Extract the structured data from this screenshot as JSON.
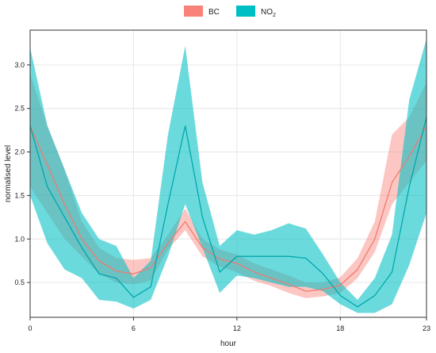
{
  "chart_data": {
    "type": "line",
    "xlabel": "hour",
    "ylabel": "normalised level",
    "xlim": [
      0,
      23
    ],
    "ylim": [
      0.1,
      3.4
    ],
    "x_ticks": [
      0,
      6,
      12,
      18,
      23
    ],
    "y_ticks": [
      0.5,
      1.0,
      1.5,
      2.0,
      2.5,
      3.0
    ],
    "x_tick_labels": [
      "0",
      "6",
      "12",
      "18",
      "23"
    ],
    "y_tick_labels": [
      "0.5",
      "1.0",
      "1.5",
      "2.0",
      "2.5",
      "3.0"
    ],
    "grid": true,
    "legend_placement": "top-center",
    "x": [
      0,
      1,
      2,
      3,
      4,
      5,
      6,
      7,
      8,
      9,
      10,
      11,
      12,
      13,
      14,
      15,
      16,
      17,
      18,
      19,
      20,
      21,
      22,
      23
    ],
    "series": [
      {
        "name": "BC",
        "legend_main": "BC",
        "legend_sub": "",
        "line_color": "#f07b72",
        "fill_color": "#f8766d",
        "values": [
          2.3,
          1.85,
          1.4,
          1.0,
          0.75,
          0.63,
          0.6,
          0.67,
          0.95,
          1.2,
          0.9,
          0.77,
          0.72,
          0.62,
          0.55,
          0.48,
          0.4,
          0.42,
          0.47,
          0.65,
          1.0,
          1.65,
          1.95,
          2.3
        ],
        "lower": [
          1.6,
          1.3,
          1.0,
          0.8,
          0.6,
          0.5,
          0.48,
          0.52,
          0.88,
          1.1,
          0.8,
          0.68,
          0.62,
          0.52,
          0.46,
          0.38,
          0.32,
          0.34,
          0.38,
          0.55,
          0.85,
          1.4,
          1.65,
          1.9
        ],
        "upper": [
          2.9,
          2.3,
          1.8,
          1.2,
          0.9,
          0.78,
          0.76,
          0.78,
          1.05,
          1.35,
          1.0,
          0.88,
          0.82,
          0.72,
          0.65,
          0.58,
          0.5,
          0.5,
          0.56,
          0.78,
          1.2,
          2.2,
          2.4,
          2.8
        ]
      },
      {
        "name": "NO2",
        "legend_main": "NO",
        "legend_sub": "2",
        "line_color": "#00a8ad",
        "fill_color": "#00bfc4",
        "values": [
          2.3,
          1.6,
          1.25,
          0.9,
          0.6,
          0.55,
          0.33,
          0.45,
          1.4,
          2.3,
          1.25,
          0.62,
          0.8,
          0.8,
          0.8,
          0.8,
          0.78,
          0.6,
          0.35,
          0.22,
          0.35,
          0.62,
          1.6,
          2.4
        ],
        "lower": [
          1.5,
          0.95,
          0.65,
          0.55,
          0.3,
          0.28,
          0.2,
          0.3,
          0.8,
          1.4,
          0.9,
          0.38,
          0.58,
          0.55,
          0.5,
          0.45,
          0.45,
          0.4,
          0.25,
          0.15,
          0.15,
          0.25,
          0.7,
          1.3
        ],
        "upper": [
          3.2,
          2.3,
          1.8,
          1.3,
          1.0,
          0.92,
          0.55,
          0.75,
          2.2,
          3.22,
          1.65,
          0.92,
          1.1,
          1.05,
          1.1,
          1.18,
          1.12,
          0.82,
          0.5,
          0.3,
          0.55,
          1.05,
          2.6,
          3.3
        ]
      }
    ]
  }
}
